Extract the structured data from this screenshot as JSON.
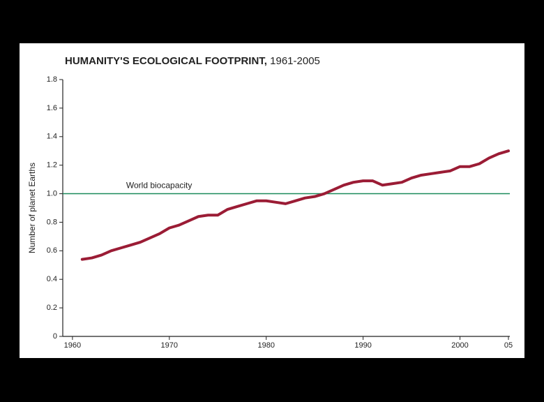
{
  "chart_data": {
    "type": "line",
    "title": "HUMANITY'S ECOLOGICAL FOOTPRINT,",
    "subtitle": "1961-2005",
    "y_label": "Number of planet Earths",
    "x": [
      1961,
      1962,
      1963,
      1964,
      1965,
      1966,
      1967,
      1968,
      1969,
      1970,
      1971,
      1972,
      1973,
      1974,
      1975,
      1976,
      1977,
      1978,
      1979,
      1980,
      1981,
      1982,
      1983,
      1984,
      1985,
      1986,
      1987,
      1988,
      1989,
      1990,
      1991,
      1992,
      1993,
      1994,
      1995,
      1996,
      1997,
      1998,
      1999,
      2000,
      2001,
      2002,
      2003,
      2004,
      2005
    ],
    "values": [
      0.54,
      0.55,
      0.57,
      0.6,
      0.62,
      0.64,
      0.66,
      0.69,
      0.72,
      0.76,
      0.78,
      0.81,
      0.84,
      0.85,
      0.85,
      0.89,
      0.91,
      0.93,
      0.95,
      0.95,
      0.94,
      0.93,
      0.95,
      0.97,
      0.98,
      1.0,
      1.03,
      1.06,
      1.08,
      1.09,
      1.09,
      1.06,
      1.07,
      1.08,
      1.11,
      1.13,
      1.14,
      1.15,
      1.16,
      1.19,
      1.19,
      1.21,
      1.25,
      1.28,
      1.3
    ],
    "color": "#9b1c35",
    "xlim": [
      1959,
      2005
    ],
    "xticks": [
      1960,
      1970,
      1980,
      1990,
      2000,
      {
        "value": 2005,
        "label": "05"
      }
    ],
    "ylim": [
      0,
      1.8
    ],
    "yticks": [
      0,
      0.2,
      0.4,
      0.6,
      0.8,
      {
        "value": 1,
        "label": "1.0"
      },
      1.2,
      1.4,
      1.6,
      1.8
    ],
    "reference_line": {
      "value": 1,
      "label": "World biocapacity",
      "color": "#1a8a5a"
    }
  }
}
